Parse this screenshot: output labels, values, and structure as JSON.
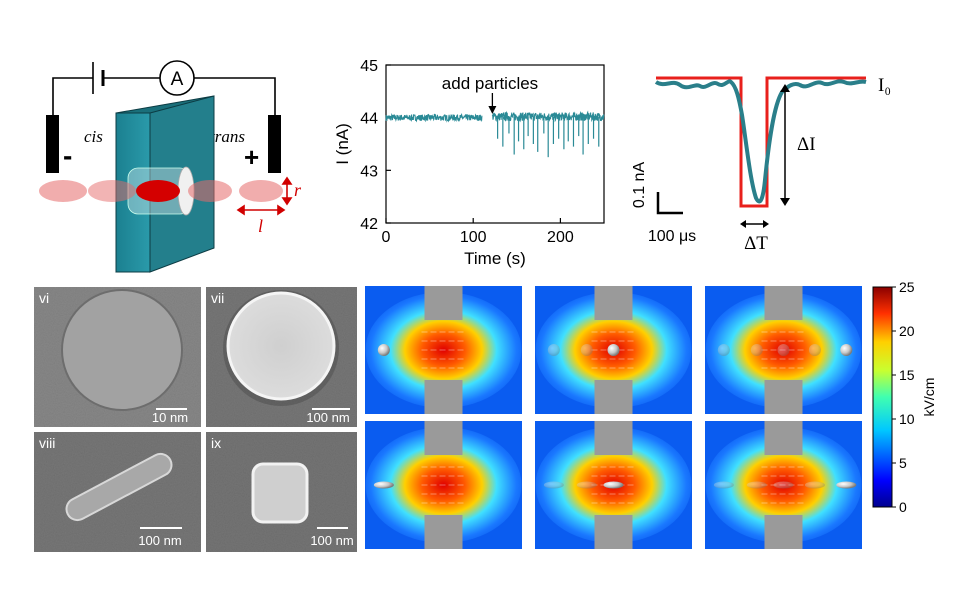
{
  "schematic": {
    "ammeter": "A",
    "cis": "cis",
    "trans": "trans",
    "minus": "-",
    "plus": "+",
    "radius_label": "r",
    "length_label": "l"
  },
  "chart_data": {
    "type": "line",
    "xlabel": "Time (s)",
    "ylabel": "I (nA)",
    "xlim": [
      0,
      250
    ],
    "ylim": [
      42,
      45
    ],
    "xticks": [
      "0",
      "100",
      "200"
    ],
    "xtick_values": [
      0,
      100,
      200
    ],
    "yticks": [
      "42",
      "43",
      "44",
      "45"
    ],
    "ytick_values": [
      42,
      43,
      44,
      45
    ],
    "annotation": "add particles",
    "annotation_x": 122,
    "series": [
      {
        "x": [
          0,
          110
        ],
        "baseline": 44.0,
        "noise": 0.06
      },
      {
        "x": [
          122,
          250
        ],
        "baseline": 44.02,
        "noise": 0.08,
        "spikes_x": [
          128,
          134,
          141,
          147,
          152,
          158,
          163,
          169,
          174,
          181,
          186,
          192,
          198,
          204,
          209,
          215,
          221,
          226,
          232,
          238,
          244
        ],
        "spikes_y": [
          43.6,
          43.45,
          43.7,
          43.3,
          43.55,
          43.4,
          43.65,
          43.5,
          43.35,
          43.7,
          43.25,
          43.5,
          43.6,
          43.4,
          43.55,
          43.45,
          43.65,
          43.3,
          43.5,
          43.6,
          43.45
        ]
      }
    ],
    "color": "#2a8a96"
  },
  "pulse": {
    "baseline_label": "I₀",
    "delta_i": "ΔI",
    "delta_t": "ΔT",
    "scale_current": "0.1 nA",
    "scale_time": "100 μs",
    "trace_color": "#2a7f8a",
    "fit_color": "#e8201c"
  },
  "micrographs": {
    "vi": {
      "label": "vi",
      "scale": "10 nm"
    },
    "vii": {
      "label": "vii",
      "scale": "100 nm"
    },
    "viii": {
      "label": "viii",
      "scale": "100 nm"
    },
    "ix": {
      "label": "ix",
      "scale": "100 nm"
    }
  },
  "colorbar": {
    "ticks": [
      "25",
      "20",
      "15",
      "10",
      "5",
      "0"
    ],
    "label": "kV/cm",
    "range": [
      0,
      25
    ]
  },
  "simulations": {
    "rows": 2,
    "cols": 3,
    "particles": [
      "sphere",
      "rod"
    ]
  }
}
